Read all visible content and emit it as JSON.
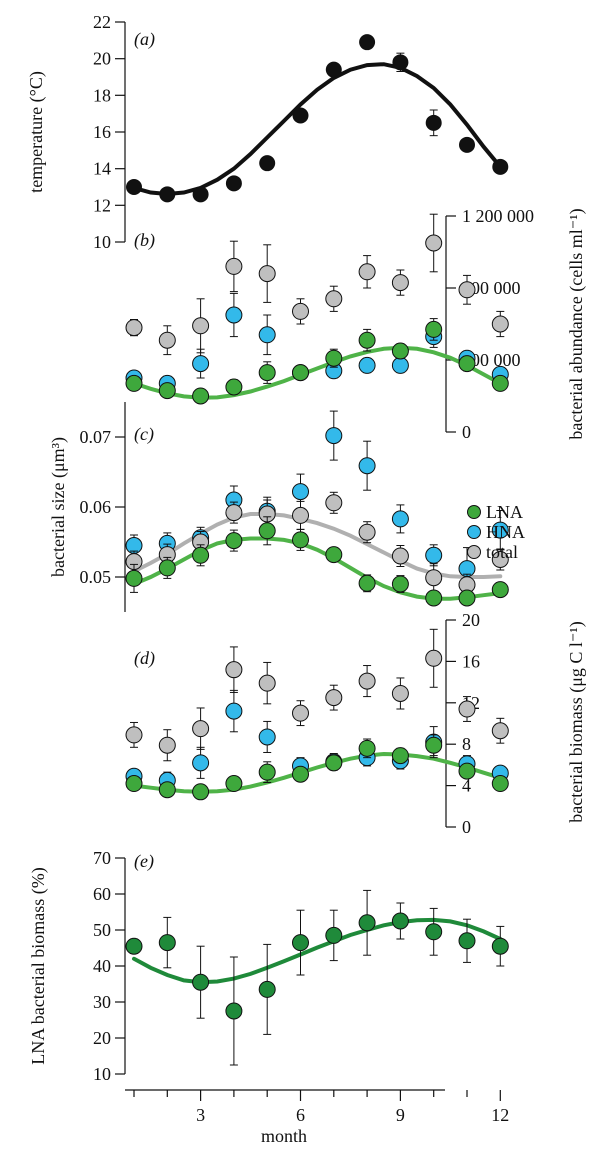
{
  "colors": {
    "lna": "#3ea83c",
    "hna": "#33b9ea",
    "total": "#bfbfbf",
    "temperature": "#111111",
    "lna_pct": "#1f8a3a",
    "fit_total": "#b0b0b0",
    "fit_lna": "#4fb348",
    "axis": "#111111"
  },
  "legend": {
    "lna": "LNA",
    "hna": "HNA",
    "total": "total"
  },
  "x_axis": {
    "label": "month",
    "ticks": [
      "3",
      "6",
      "9",
      "12"
    ]
  },
  "chart_data": [
    {
      "panel": "(a)",
      "type": "scatter",
      "ylabel": "temperature (°C)",
      "ylim": [
        10,
        22
      ],
      "yticks": [
        "10",
        "12",
        "14",
        "16",
        "18",
        "20",
        "22"
      ],
      "x": [
        1,
        2,
        3,
        4,
        5,
        6,
        7,
        8,
        9,
        10,
        11,
        12
      ],
      "series": [
        {
          "key": "temperature",
          "values": [
            13.0,
            12.6,
            12.6,
            13.2,
            14.3,
            16.9,
            19.4,
            20.9,
            19.8,
            16.5,
            15.3,
            14.1
          ],
          "err": [
            0.15,
            0.15,
            0.15,
            0.2,
            0.2,
            0.3,
            0.3,
            0.3,
            0.5,
            0.7,
            0.3,
            0.2
          ]
        }
      ],
      "fit": {
        "key": "temperature",
        "x": [
          1,
          1.5,
          2,
          2.5,
          3,
          3.5,
          4,
          4.5,
          5,
          5.5,
          6,
          6.5,
          7,
          7.5,
          8,
          8.5,
          9,
          9.5,
          10,
          10.5,
          11,
          11.5,
          12
        ],
        "y": [
          12.95,
          12.7,
          12.62,
          12.7,
          12.95,
          13.4,
          14.0,
          14.8,
          15.7,
          16.6,
          17.5,
          18.3,
          18.95,
          19.4,
          19.65,
          19.7,
          19.5,
          19.05,
          18.4,
          17.5,
          16.4,
          15.2,
          14.1
        ]
      }
    },
    {
      "panel": "(b)",
      "type": "scatter",
      "ylabel": "bacterial abundance (cells ml⁻¹)",
      "ylim": [
        0,
        1200000
      ],
      "yticks": [
        "0",
        "400 000",
        "800 000",
        "1 200 000"
      ],
      "x": [
        1,
        2,
        3,
        4,
        5,
        6,
        7,
        8,
        9,
        10,
        11,
        12
      ],
      "series": [
        {
          "key": "total",
          "values": [
            580000,
            510000,
            590000,
            920000,
            880000,
            670000,
            740000,
            890000,
            830000,
            1050000,
            790000,
            600000
          ],
          "err": [
            45000,
            80000,
            150000,
            140000,
            160000,
            70000,
            70000,
            90000,
            70000,
            160000,
            80000,
            70000
          ]
        },
        {
          "key": "hna",
          "values": [
            300000,
            270000,
            380000,
            650000,
            540000,
            330000,
            340000,
            370000,
            370000,
            530000,
            410000,
            320000
          ],
          "err": [
            30000,
            40000,
            80000,
            120000,
            110000,
            30000,
            40000,
            40000,
            40000,
            60000,
            40000,
            30000
          ]
        },
        {
          "key": "lna",
          "values": [
            270000,
            230000,
            200000,
            250000,
            330000,
            330000,
            410000,
            510000,
            450000,
            570000,
            380000,
            270000
          ],
          "err": [
            30000,
            25000,
            25000,
            40000,
            60000,
            30000,
            50000,
            60000,
            40000,
            60000,
            40000,
            30000
          ]
        }
      ],
      "fit": {
        "key": "lna",
        "x": [
          1,
          1.5,
          2,
          2.5,
          3,
          3.5,
          4,
          4.5,
          5,
          5.5,
          6,
          6.5,
          7,
          7.5,
          8,
          8.5,
          9,
          9.5,
          10,
          10.5,
          11,
          11.5,
          12
        ],
        "y": [
          270000,
          240000,
          215000,
          198000,
          190000,
          192000,
          205000,
          225000,
          252000,
          283000,
          318000,
          353000,
          388000,
          420000,
          445000,
          462000,
          468000,
          462000,
          443000,
          412000,
          370000,
          320000,
          270000
        ]
      }
    },
    {
      "panel": "(c)",
      "type": "scatter",
      "ylabel": "bacterial size (μm³)",
      "ylim": [
        0.045,
        0.075
      ],
      "yticks": [
        "0.05",
        "0.06",
        "0.07"
      ],
      "x": [
        1,
        2,
        3,
        4,
        5,
        6,
        7,
        8,
        9,
        10,
        11,
        12
      ],
      "series": [
        {
          "key": "hna",
          "values": [
            0.0545,
            0.0548,
            0.0556,
            0.061,
            0.0594,
            0.0622,
            0.0702,
            0.0659,
            0.0583,
            0.0531,
            0.0512,
            0.0567
          ],
          "err": [
            0.0015,
            0.0015,
            0.0015,
            0.002,
            0.002,
            0.0025,
            0.0035,
            0.0035,
            0.002,
            0.0015,
            0.003,
            0.0028
          ]
        },
        {
          "key": "total",
          "values": [
            0.0522,
            0.0532,
            0.055,
            0.0592,
            0.059,
            0.0588,
            0.0606,
            0.0564,
            0.053,
            0.0499,
            0.0489,
            0.0525
          ],
          "err": [
            0.0015,
            0.0015,
            0.0015,
            0.0015,
            0.002,
            0.002,
            0.0015,
            0.0015,
            0.0015,
            0.002,
            0.0015,
            0.0015
          ]
        },
        {
          "key": "lna",
          "values": [
            0.0498,
            0.0513,
            0.0531,
            0.0552,
            0.0566,
            0.0553,
            0.0532,
            0.0491,
            0.049,
            0.047,
            0.047,
            0.0482
          ],
          "err": [
            0.002,
            0.0015,
            0.0015,
            0.0015,
            0.002,
            0.0015,
            0.001,
            0.0012,
            0.0012,
            0.001,
            0.001,
            0.001
          ]
        }
      ],
      "fit": [
        {
          "key": "total",
          "x": [
            1,
            1.5,
            2,
            2.5,
            3,
            3.5,
            4,
            4.5,
            5,
            5.5,
            6,
            6.5,
            7,
            7.5,
            8,
            8.5,
            9,
            9.5,
            10,
            10.5,
            11,
            11.5,
            12
          ],
          "y": [
            0.0508,
            0.052,
            0.0533,
            0.0548,
            0.0562,
            0.0575,
            0.0585,
            0.059,
            0.059,
            0.0588,
            0.0583,
            0.0577,
            0.0569,
            0.0559,
            0.0547,
            0.0535,
            0.0523,
            0.0512,
            0.0505,
            0.0501,
            0.05,
            0.05,
            0.0501
          ]
        },
        {
          "key": "lna",
          "x": [
            1,
            1.5,
            2,
            2.5,
            3,
            3.5,
            4,
            4.5,
            5,
            5.5,
            6,
            6.5,
            7,
            7.5,
            8,
            8.5,
            9,
            9.5,
            10,
            10.5,
            11,
            11.5,
            12
          ],
          "y": [
            0.049,
            0.05,
            0.0512,
            0.0525,
            0.0538,
            0.0548,
            0.0553,
            0.0555,
            0.0555,
            0.0553,
            0.0548,
            0.0539,
            0.0527,
            0.0513,
            0.0499,
            0.0487,
            0.0478,
            0.0472,
            0.0469,
            0.0469,
            0.0471,
            0.0474,
            0.0477
          ]
        }
      ]
    },
    {
      "panel": "(d)",
      "type": "scatter",
      "ylabel": "bacterial biomass (μg C l⁻¹)",
      "ylim": [
        0,
        20
      ],
      "yticks": [
        "0",
        "4",
        "8",
        "12",
        "16",
        "20"
      ],
      "x": [
        1,
        2,
        3,
        4,
        5,
        6,
        7,
        8,
        9,
        10,
        11,
        12
      ],
      "series": [
        {
          "key": "total",
          "values": [
            8.9,
            7.9,
            9.5,
            15.2,
            13.9,
            11.0,
            12.5,
            14.1,
            12.9,
            16.3,
            11.4,
            9.3
          ],
          "err": [
            1.2,
            1.5,
            2.0,
            2.2,
            2.0,
            1.2,
            1.2,
            1.5,
            1.5,
            2.8,
            1.2,
            1.2
          ]
        },
        {
          "key": "hna",
          "values": [
            4.9,
            4.5,
            6.2,
            11.2,
            8.7,
            5.9,
            6.3,
            6.7,
            6.4,
            8.2,
            6.1,
            5.2
          ],
          "err": [
            0.6,
            0.8,
            1.5,
            2.0,
            1.5,
            0.8,
            0.8,
            0.8,
            0.8,
            1.5,
            0.8,
            0.6
          ]
        },
        {
          "key": "lna",
          "values": [
            4.2,
            3.6,
            3.4,
            4.2,
            5.3,
            5.1,
            6.2,
            7.6,
            6.9,
            7.9,
            5.4,
            4.2
          ],
          "err": [
            0.5,
            0.4,
            0.4,
            0.6,
            1.0,
            0.6,
            0.7,
            0.9,
            0.7,
            1.0,
            0.6,
            0.5
          ]
        }
      ],
      "fit": {
        "key": "lna",
        "x": [
          1,
          1.5,
          2,
          2.5,
          3,
          3.5,
          4,
          4.5,
          5,
          5.5,
          6,
          6.5,
          7,
          7.5,
          8,
          8.5,
          9,
          9.5,
          10,
          10.5,
          11,
          11.5,
          12
        ],
        "y": [
          4.0,
          3.8,
          3.6,
          3.45,
          3.4,
          3.45,
          3.6,
          3.9,
          4.3,
          4.75,
          5.25,
          5.75,
          6.2,
          6.6,
          6.9,
          7.05,
          7.0,
          6.85,
          6.6,
          6.2,
          5.75,
          5.25,
          4.75
        ]
      }
    },
    {
      "panel": "(e)",
      "type": "scatter",
      "ylabel": "LNA bacterial biomass (%)",
      "ylim": [
        10,
        70
      ],
      "yticks": [
        "10",
        "20",
        "30",
        "40",
        "50",
        "60",
        "70"
      ],
      "x": [
        1,
        2,
        3,
        4,
        5,
        6,
        7,
        8,
        9,
        10,
        11,
        12
      ],
      "series": [
        {
          "key": "lna_pct",
          "values": [
            45.5,
            46.5,
            35.5,
            27.5,
            33.5,
            46.5,
            48.5,
            52.0,
            52.5,
            49.5,
            47.0,
            45.5
          ],
          "err": [
            2.0,
            7.0,
            10.0,
            15.0,
            12.5,
            9.0,
            7.0,
            9.0,
            5.0,
            6.5,
            6.0,
            5.5
          ]
        }
      ],
      "fit": {
        "key": "lna_pct",
        "x": [
          1,
          1.5,
          2,
          2.5,
          3,
          3.5,
          4,
          4.5,
          5,
          5.5,
          6,
          6.5,
          7,
          7.5,
          8,
          8.5,
          9,
          9.5,
          10,
          10.5,
          11,
          11.5,
          12
        ],
        "y": [
          42.0,
          39.5,
          37.5,
          36.0,
          35.5,
          35.7,
          36.5,
          37.8,
          39.5,
          41.3,
          43.2,
          45.1,
          46.9,
          48.6,
          50.0,
          51.3,
          52.2,
          52.7,
          52.8,
          52.4,
          51.3,
          49.6,
          47.5
        ]
      }
    }
  ]
}
